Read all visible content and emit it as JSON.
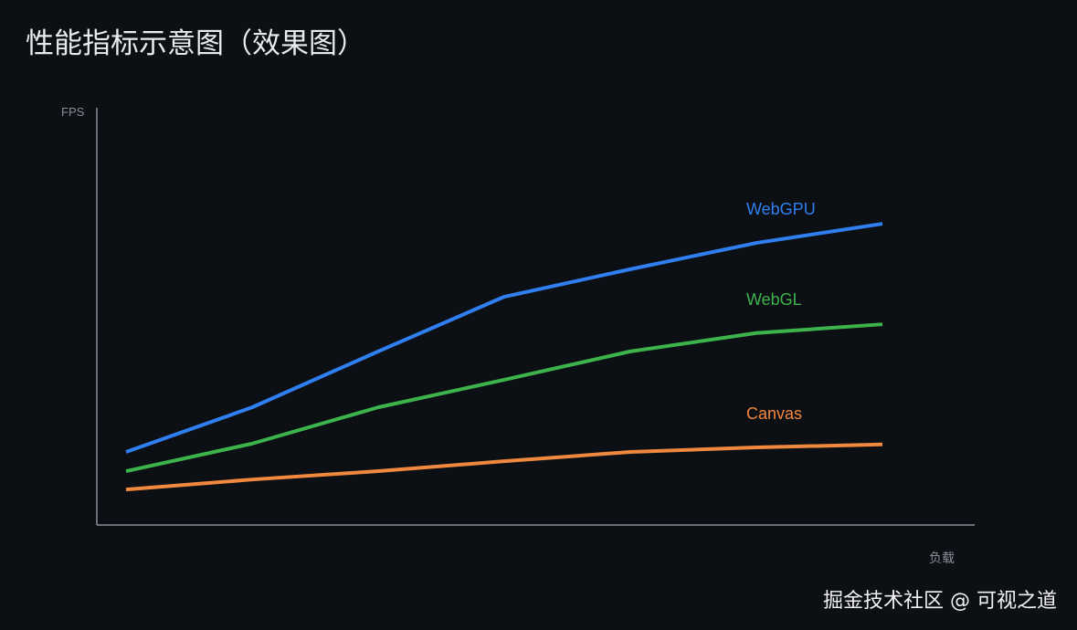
{
  "title": "性能指标示意图（效果图）",
  "watermark": "掘金技术社区 @ 可视之道",
  "chart_data": {
    "type": "line",
    "title": "性能指标示意图（效果图）",
    "xlabel": "负载",
    "ylabel": "FPS",
    "ylim": [
      0,
      100
    ],
    "grid": false,
    "x": [
      1,
      2,
      3,
      4,
      5,
      6,
      7
    ],
    "series": [
      {
        "name": "WebGPU",
        "color": "#2f7ff0",
        "values": [
          17.5,
          28.2,
          41.6,
          54.7,
          61.3,
          67.6,
          72.2
        ]
      },
      {
        "name": "WebGL",
        "color": "#3cb44b",
        "values": [
          12.9,
          19.5,
          28.2,
          34.8,
          41.6,
          46.0,
          48.1
        ]
      },
      {
        "name": "Canvas",
        "color": "#f0883e",
        "values": [
          8.5,
          10.9,
          12.9,
          15.3,
          17.5,
          18.6,
          19.3
        ]
      }
    ],
    "axis_color": "#8b8f96"
  }
}
